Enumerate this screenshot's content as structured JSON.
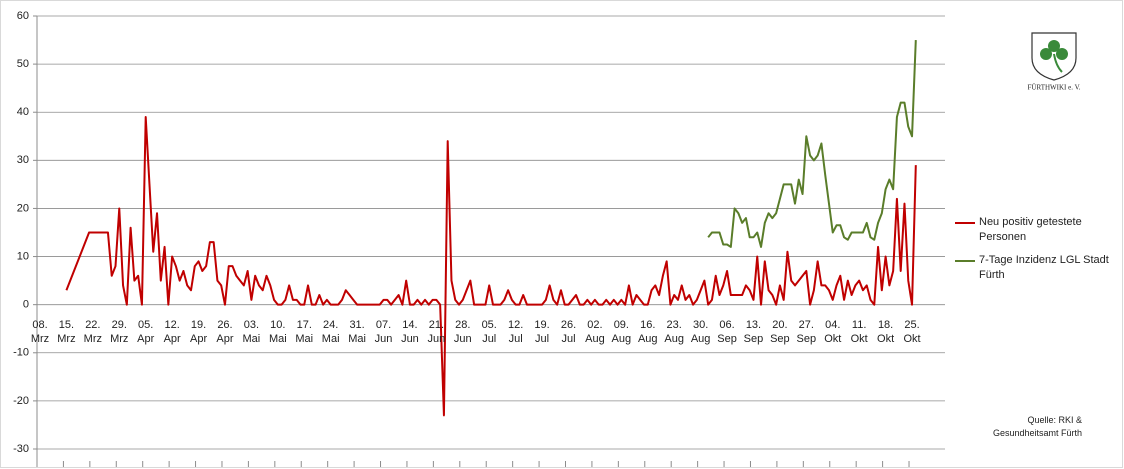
{
  "chart_data": {
    "type": "line",
    "categories": [
      "08. Mrz",
      null,
      null,
      null,
      null,
      null,
      null,
      "15. Mrz",
      null,
      null,
      null,
      null,
      null,
      null,
      "22. Mrz",
      null,
      null,
      null,
      null,
      null,
      null,
      "29. Mrz",
      null,
      null,
      null,
      null,
      null,
      null,
      "05. Apr",
      null,
      null,
      null,
      null,
      null,
      null,
      "12. Apr",
      null,
      null,
      null,
      null,
      null,
      null,
      "19. Apr",
      null,
      null,
      null,
      null,
      null,
      null,
      "26. Apr",
      null,
      null,
      null,
      null,
      null,
      null,
      "03. Mai",
      null,
      null,
      null,
      null,
      null,
      null,
      "10. Mai",
      null,
      null,
      null,
      null,
      null,
      null,
      "17. Mai",
      null,
      null,
      null,
      null,
      null,
      null,
      "24. Mai",
      null,
      null,
      null,
      null,
      null,
      null,
      "31. Mai",
      null,
      null,
      null,
      null,
      null,
      null,
      "07. Jun",
      null,
      null,
      null,
      null,
      null,
      null,
      "14. Jun",
      null,
      null,
      null,
      null,
      null,
      null,
      "21. Jun",
      null,
      null,
      null,
      null,
      null,
      null,
      "28. Jun",
      null,
      null,
      null,
      null,
      null,
      null,
      "05. Jul",
      null,
      null,
      null,
      null,
      null,
      null,
      "12. Jul",
      null,
      null,
      null,
      null,
      null,
      null,
      "19. Jul",
      null,
      null,
      null,
      null,
      null,
      null,
      "26. Jul",
      null,
      null,
      null,
      null,
      null,
      null,
      "02. Aug",
      null,
      null,
      null,
      null,
      null,
      null,
      "09. Aug",
      null,
      null,
      null,
      null,
      null,
      null,
      "16. Aug",
      null,
      null,
      null,
      null,
      null,
      null,
      "23. Aug",
      null,
      null,
      null,
      null,
      null,
      null,
      "30. Aug",
      null,
      null,
      null,
      null,
      null,
      null,
      "06. Sep",
      null,
      null,
      null,
      null,
      null,
      null,
      "13. Sep",
      null,
      null,
      null,
      null,
      null,
      null,
      "20. Sep",
      null,
      null,
      null,
      null,
      null,
      null,
      "27. Sep",
      null,
      null,
      null,
      null,
      null,
      null,
      "04. Okt",
      null,
      null,
      null,
      null,
      null,
      null,
      "11. Okt",
      null,
      null,
      null,
      null,
      null,
      null,
      "18. Okt",
      null,
      null,
      null,
      null,
      null,
      null,
      "25. Okt",
      null
    ],
    "series": [
      {
        "name": "Neu positiv getestete Personen",
        "color": "#c00000",
        "values": [
          null,
          null,
          null,
          null,
          null,
          null,
          null,
          3,
          5,
          7,
          9,
          11,
          13,
          15,
          15,
          15,
          15,
          15,
          15,
          6,
          8,
          20,
          4,
          0,
          16,
          5,
          6,
          0,
          39,
          25,
          11,
          19,
          5,
          12,
          0,
          10,
          8,
          5,
          7,
          4,
          3,
          8,
          9,
          7,
          8,
          13,
          13,
          5,
          4,
          0,
          8,
          8,
          6,
          5,
          4,
          7,
          1,
          6,
          4,
          3,
          6,
          4,
          1,
          0,
          0,
          1,
          4,
          1,
          1,
          0,
          0,
          4,
          0,
          0,
          2,
          0,
          1,
          0,
          0,
          0,
          1,
          3,
          2,
          1,
          0,
          0,
          0,
          0,
          0,
          0,
          0,
          1,
          1,
          0,
          1,
          2,
          0,
          5,
          0,
          0,
          1,
          0,
          1,
          0,
          1,
          1,
          0,
          -23,
          34,
          5,
          1,
          0,
          1,
          3,
          5,
          0,
          0,
          0,
          0,
          4,
          0,
          0,
          0,
          1,
          3,
          1,
          0,
          0,
          2,
          0,
          0,
          0,
          0,
          0,
          1,
          4,
          1,
          0,
          3,
          0,
          0,
          1,
          2,
          0,
          0,
          1,
          0,
          1,
          0,
          0,
          1,
          0,
          1,
          0,
          1,
          0,
          4,
          0,
          2,
          1,
          0,
          0,
          3,
          4,
          2,
          6,
          9,
          0,
          2,
          1,
          4,
          1,
          2,
          0,
          1,
          3,
          5,
          0,
          1,
          6,
          2,
          4,
          7,
          2,
          2,
          2,
          2,
          4,
          3,
          1,
          10,
          0,
          9,
          3,
          2,
          0,
          4,
          1,
          11,
          5,
          4,
          5,
          6,
          7,
          0,
          3,
          9,
          4,
          4,
          3,
          1,
          4,
          6,
          1,
          5,
          2,
          4,
          5,
          3,
          4,
          1,
          0,
          12,
          3,
          10,
          4,
          7,
          22,
          7,
          21,
          5,
          0,
          29
        ]
      },
      {
        "name": "7-Tage Inzidenz LGL Stadt Fürth",
        "color": "#5a7d2a",
        "values": [
          null,
          null,
          null,
          null,
          null,
          null,
          null,
          null,
          null,
          null,
          null,
          null,
          null,
          null,
          null,
          null,
          null,
          null,
          null,
          null,
          null,
          null,
          null,
          null,
          null,
          null,
          null,
          null,
          null,
          null,
          null,
          null,
          null,
          null,
          null,
          null,
          null,
          null,
          null,
          null,
          null,
          null,
          null,
          null,
          null,
          null,
          null,
          null,
          null,
          null,
          null,
          null,
          null,
          null,
          null,
          null,
          null,
          null,
          null,
          null,
          null,
          null,
          null,
          null,
          null,
          null,
          null,
          null,
          null,
          null,
          null,
          null,
          null,
          null,
          null,
          null,
          null,
          null,
          null,
          null,
          null,
          null,
          null,
          null,
          null,
          null,
          null,
          null,
          null,
          null,
          null,
          null,
          null,
          null,
          null,
          null,
          null,
          null,
          null,
          null,
          null,
          null,
          null,
          null,
          null,
          null,
          null,
          null,
          null,
          null,
          null,
          null,
          null,
          null,
          null,
          null,
          null,
          null,
          null,
          null,
          null,
          null,
          null,
          null,
          null,
          null,
          null,
          null,
          null,
          null,
          null,
          null,
          null,
          null,
          null,
          null,
          null,
          null,
          null,
          null,
          null,
          null,
          null,
          null,
          null,
          null,
          null,
          null,
          null,
          null,
          null,
          null,
          null,
          null,
          null,
          null,
          null,
          null,
          null,
          null,
          null,
          null,
          null,
          null,
          null,
          null,
          null,
          null,
          null,
          null,
          null,
          null,
          null,
          null,
          null,
          null,
          null,
          14,
          15,
          15,
          15,
          12.5,
          12.5,
          12,
          20,
          19,
          17,
          18,
          14,
          14,
          15,
          12,
          17,
          19,
          18,
          19,
          22,
          25,
          25,
          25,
          21,
          26,
          23,
          35,
          31,
          30,
          31,
          33.5,
          27,
          21,
          15,
          16.5,
          16.5,
          14,
          13.5,
          15,
          15,
          15,
          15,
          17,
          14,
          13.5,
          17,
          19,
          24,
          26,
          24,
          39,
          42,
          42,
          37,
          35,
          55
        ]
      }
    ],
    "ylim": [
      -30,
      60
    ],
    "yticks": [
      -30,
      -20,
      -10,
      0,
      10,
      20,
      30,
      40,
      50,
      60
    ],
    "grid": true,
    "source": "Quelle: RKI & Gesundheitsamt Fürth",
    "logo_text": "FÜRTHWIKI e. V."
  }
}
